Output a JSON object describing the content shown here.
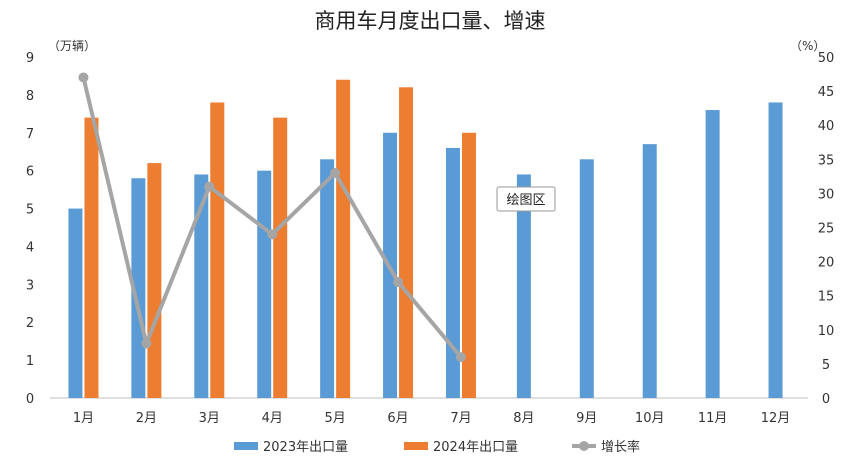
{
  "chart_data": {
    "type": "bar",
    "title": "商用车月度出口量、增速",
    "y_left_unit": "（万辆）",
    "y_right_unit": "（%）",
    "categories": [
      "1月",
      "2月",
      "3月",
      "4月",
      "5月",
      "6月",
      "7月",
      "8月",
      "9月",
      "10月",
      "11月",
      "12月"
    ],
    "y_left_ticks": [
      "0",
      "1",
      "2",
      "3",
      "4",
      "5",
      "6",
      "7",
      "8",
      "9"
    ],
    "y_right_ticks": [
      "0",
      "5",
      "10",
      "15",
      "20",
      "25",
      "30",
      "35",
      "40",
      "45",
      "50"
    ],
    "ylim_left": [
      0,
      9
    ],
    "ylim_right": [
      0,
      50
    ],
    "series": [
      {
        "name": "2023年出口量",
        "kind": "bar",
        "axis": "left",
        "color": "#5b9bd5",
        "values": [
          5.0,
          5.8,
          5.9,
          6.0,
          6.3,
          7.0,
          6.6,
          5.9,
          6.3,
          6.7,
          7.6,
          7.8
        ]
      },
      {
        "name": "2024年出口量",
        "kind": "bar",
        "axis": "left",
        "color": "#ed7d31",
        "values": [
          7.4,
          6.2,
          7.8,
          7.4,
          8.4,
          8.2,
          7.0,
          null,
          null,
          null,
          null,
          null
        ]
      },
      {
        "name": "增长率",
        "kind": "line",
        "axis": "right",
        "color": "#a5a5a5",
        "values": [
          47,
          8,
          31,
          24,
          33,
          17,
          6,
          null,
          null,
          null,
          null,
          null
        ]
      }
    ],
    "legend_position": "bottom",
    "grid": false,
    "tooltip": "绘图区"
  }
}
